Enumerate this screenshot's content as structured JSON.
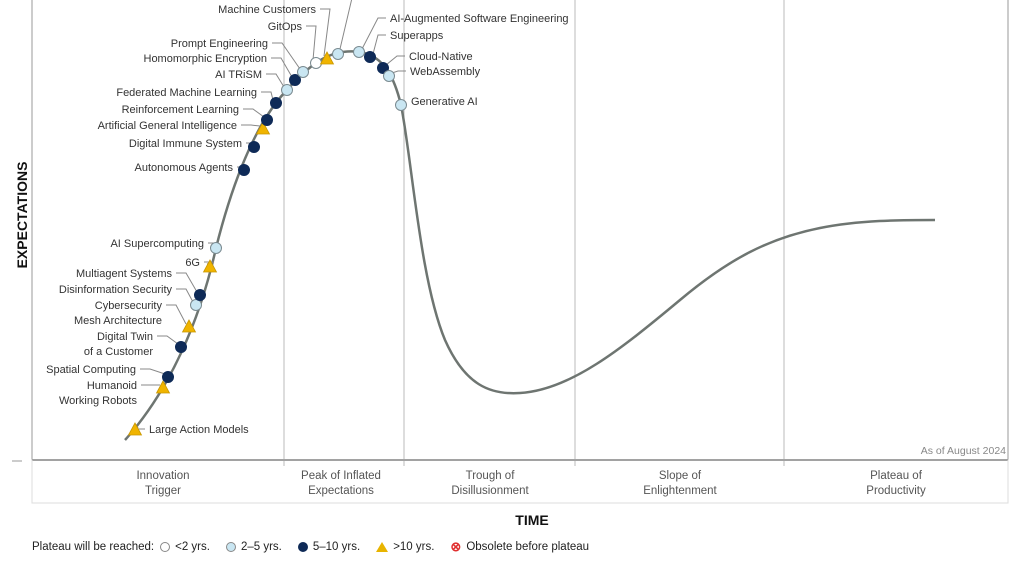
{
  "axes": {
    "y_label": "EXPECTATIONS",
    "x_label": "TIME"
  },
  "as_of": "As of August 2024",
  "phases": [
    {
      "line1": "Innovation",
      "line2": "Trigger"
    },
    {
      "line1": "Peak of Inflated",
      "line2": "Expectations"
    },
    {
      "line1": "Trough of",
      "line2": "Disillusionment"
    },
    {
      "line1": "Slope of",
      "line2": "Enlightenment"
    },
    {
      "line1": "Plateau of",
      "line2": "Productivity"
    }
  ],
  "colors": {
    "lt2": "#ffffff",
    "y2to5": "#c9e6f2",
    "y5to10": "#0e2a57",
    "gt10": "#f0b400",
    "curve": "#6e7571",
    "obsolete": "#e03030"
  },
  "technologies": [
    {
      "name": "Large Action Models",
      "plateau": "gt10"
    },
    {
      "name": "Humanoid",
      "name2": "Working Robots",
      "plateau": "gt10"
    },
    {
      "name": "Spatial Computing",
      "plateau": "y5to10"
    },
    {
      "name": "Digital Twin",
      "name2": "of a Customer",
      "plateau": "y5to10"
    },
    {
      "name": "Cybersecurity",
      "name2": "Mesh Architecture",
      "plateau": "gt10"
    },
    {
      "name": "Disinformation Security",
      "plateau": "y2to5"
    },
    {
      "name": "Multiagent Systems",
      "plateau": "y5to10"
    },
    {
      "name": "6G",
      "plateau": "gt10"
    },
    {
      "name": "AI Supercomputing",
      "plateau": "y2to5"
    },
    {
      "name": "Autonomous Agents",
      "plateau": "y5to10"
    },
    {
      "name": "Digital Immune System",
      "plateau": "y5to10"
    },
    {
      "name": "Artificial General Intelligence",
      "plateau": "gt10"
    },
    {
      "name": "Reinforcement Learning",
      "plateau": "y5to10"
    },
    {
      "name": "Federated Machine Learning",
      "plateau": "y5to10"
    },
    {
      "name": "AI TRiSM",
      "plateau": "y2to5"
    },
    {
      "name": "Homomorphic Encryption",
      "plateau": "y5to10"
    },
    {
      "name": "Prompt Engineering",
      "plateau": "y2to5"
    },
    {
      "name": "GitOps",
      "plateau": "lt2"
    },
    {
      "name": "Machine Customers",
      "plateau": "gt10"
    },
    {
      "name": "",
      "plateau": "y2to5"
    },
    {
      "name": "AI-Augmented Software Engineering",
      "plateau": "y2to5"
    },
    {
      "name": "Superapps",
      "plateau": "y5to10"
    },
    {
      "name": "Cloud-Native",
      "plateau": "y5to10"
    },
    {
      "name": "WebAssembly",
      "plateau": "y2to5"
    },
    {
      "name": "Generative AI",
      "plateau": "y2to5"
    }
  ],
  "legend": {
    "title": "Plateau will be reached:",
    "items": [
      {
        "key": "lt2",
        "label": "<2 yrs."
      },
      {
        "key": "y2to5",
        "label": "2–5 yrs."
      },
      {
        "key": "y5to10",
        "label": "5–10 yrs."
      },
      {
        "key": "gt10",
        "label": ">10 yrs."
      },
      {
        "key": "obsolete",
        "label": "Obsolete before plateau"
      }
    ]
  }
}
